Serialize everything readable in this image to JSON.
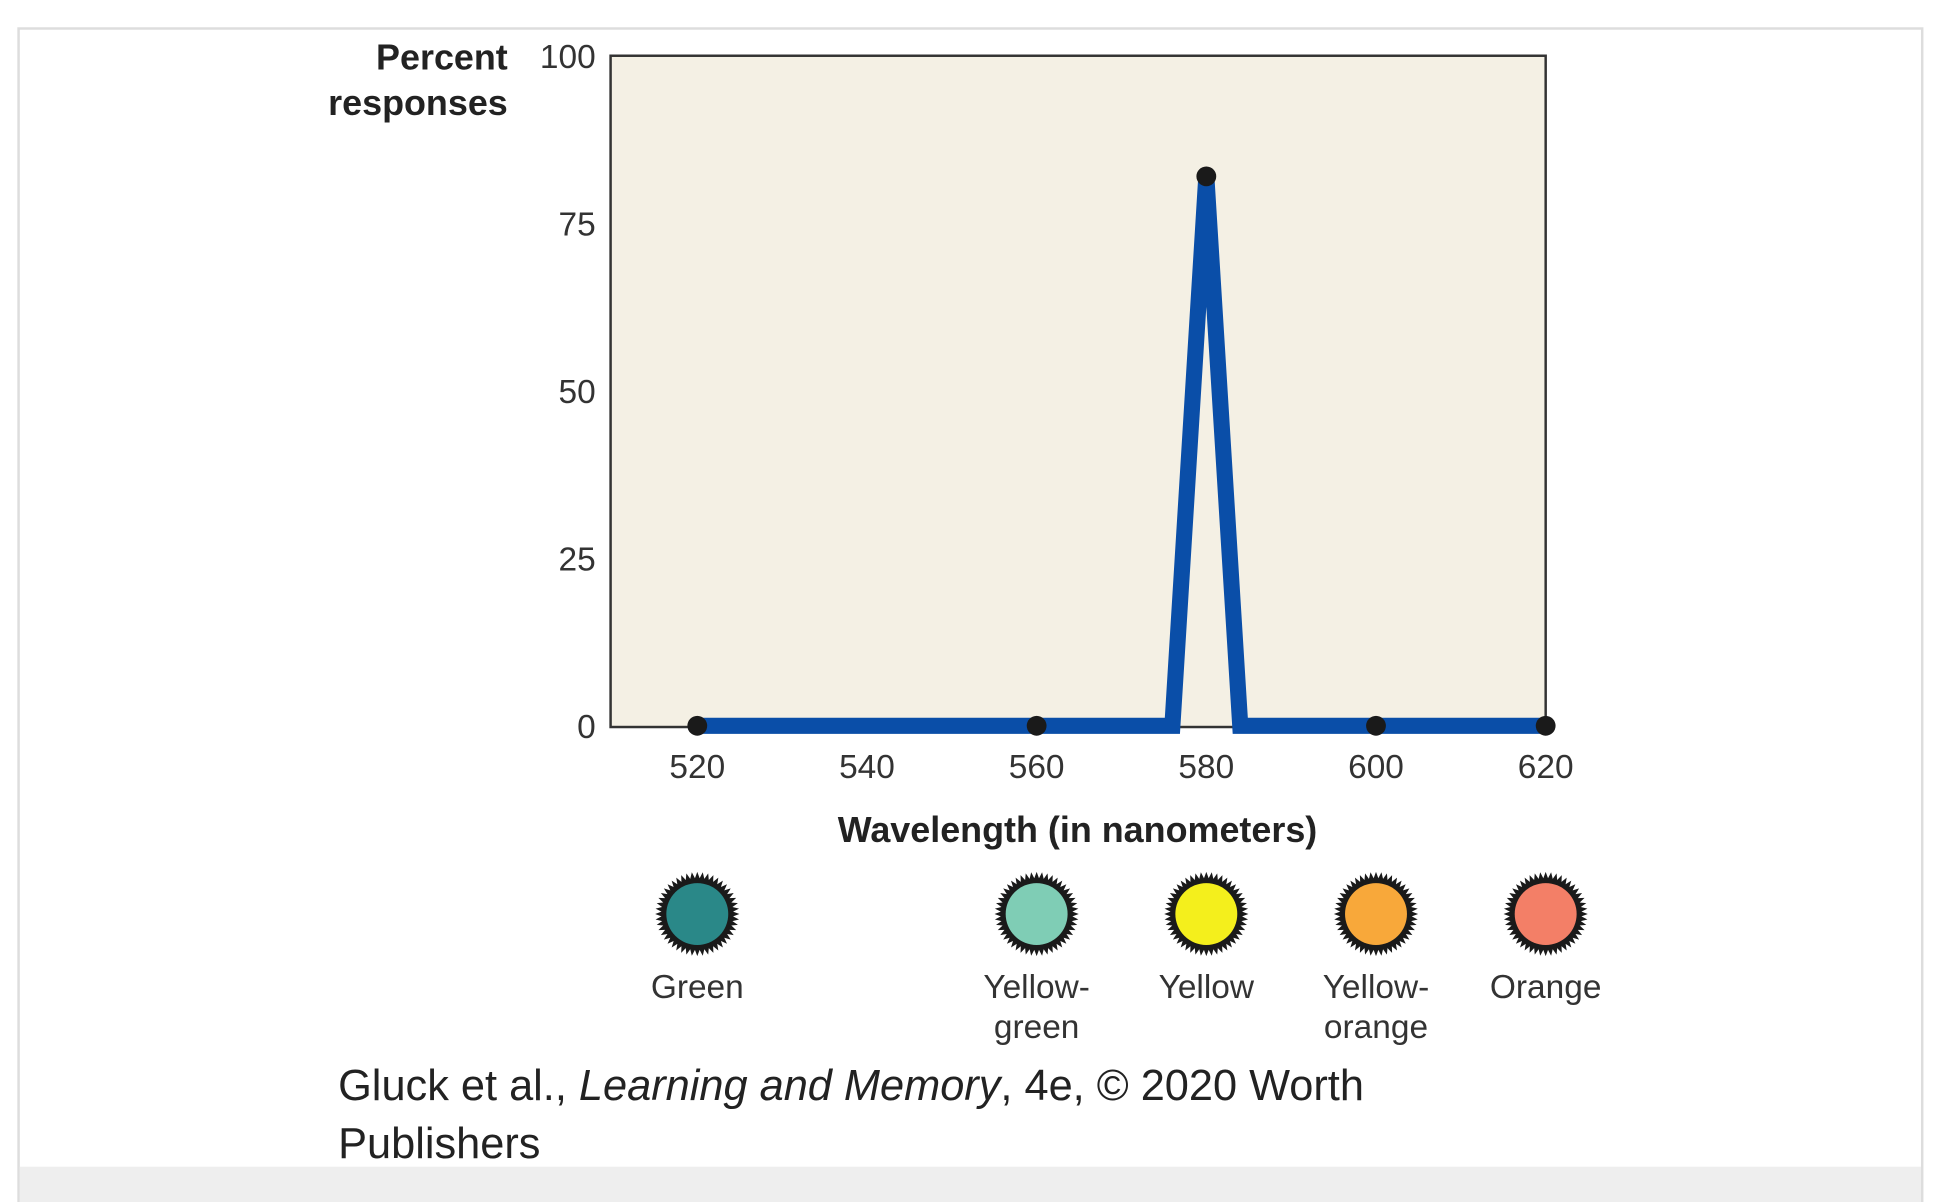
{
  "chart_data": {
    "type": "line",
    "ylabel_lines": [
      "Percent",
      "responses"
    ],
    "xlabel": "Wavelength (in nanometers)",
    "xlim": [
      510,
      620
    ],
    "ylim": [
      0,
      100
    ],
    "x_ticks": [
      "520",
      "540",
      "560",
      "580",
      "600",
      "620"
    ],
    "y_ticks": [
      "0",
      "25",
      "50",
      "75",
      "100"
    ],
    "grid": false,
    "plot_background": "#f4f0e4",
    "line_color": "#0a4ea8",
    "marker_color": "#1a1a1a",
    "line": {
      "x": [
        520,
        560,
        576,
        580,
        584,
        600,
        620
      ],
      "y": [
        0,
        0,
        0,
        82,
        0,
        0,
        0
      ]
    },
    "markers": {
      "x": [
        520,
        560,
        580,
        600,
        620
      ],
      "y": [
        0,
        0,
        82,
        0,
        0
      ]
    },
    "color_swatches": [
      {
        "wavelength": 520,
        "label_lines": [
          "Green"
        ],
        "color": "#2a8888"
      },
      {
        "wavelength": 560,
        "label_lines": [
          "Yellow-",
          "green"
        ],
        "color": "#7fcdb5"
      },
      {
        "wavelength": 580,
        "label_lines": [
          "Yellow"
        ],
        "color": "#f4ef1c"
      },
      {
        "wavelength": 600,
        "label_lines": [
          "Yellow-",
          "orange"
        ],
        "color": "#f8a83a"
      },
      {
        "wavelength": 620,
        "label_lines": [
          "Orange"
        ],
        "color": "#f37f67"
      }
    ]
  },
  "caption": {
    "prefix": "Gluck et al., ",
    "title": "Learning and Memory",
    "suffix": ", 4e, © 2020 Worth",
    "line2": "Publishers"
  }
}
